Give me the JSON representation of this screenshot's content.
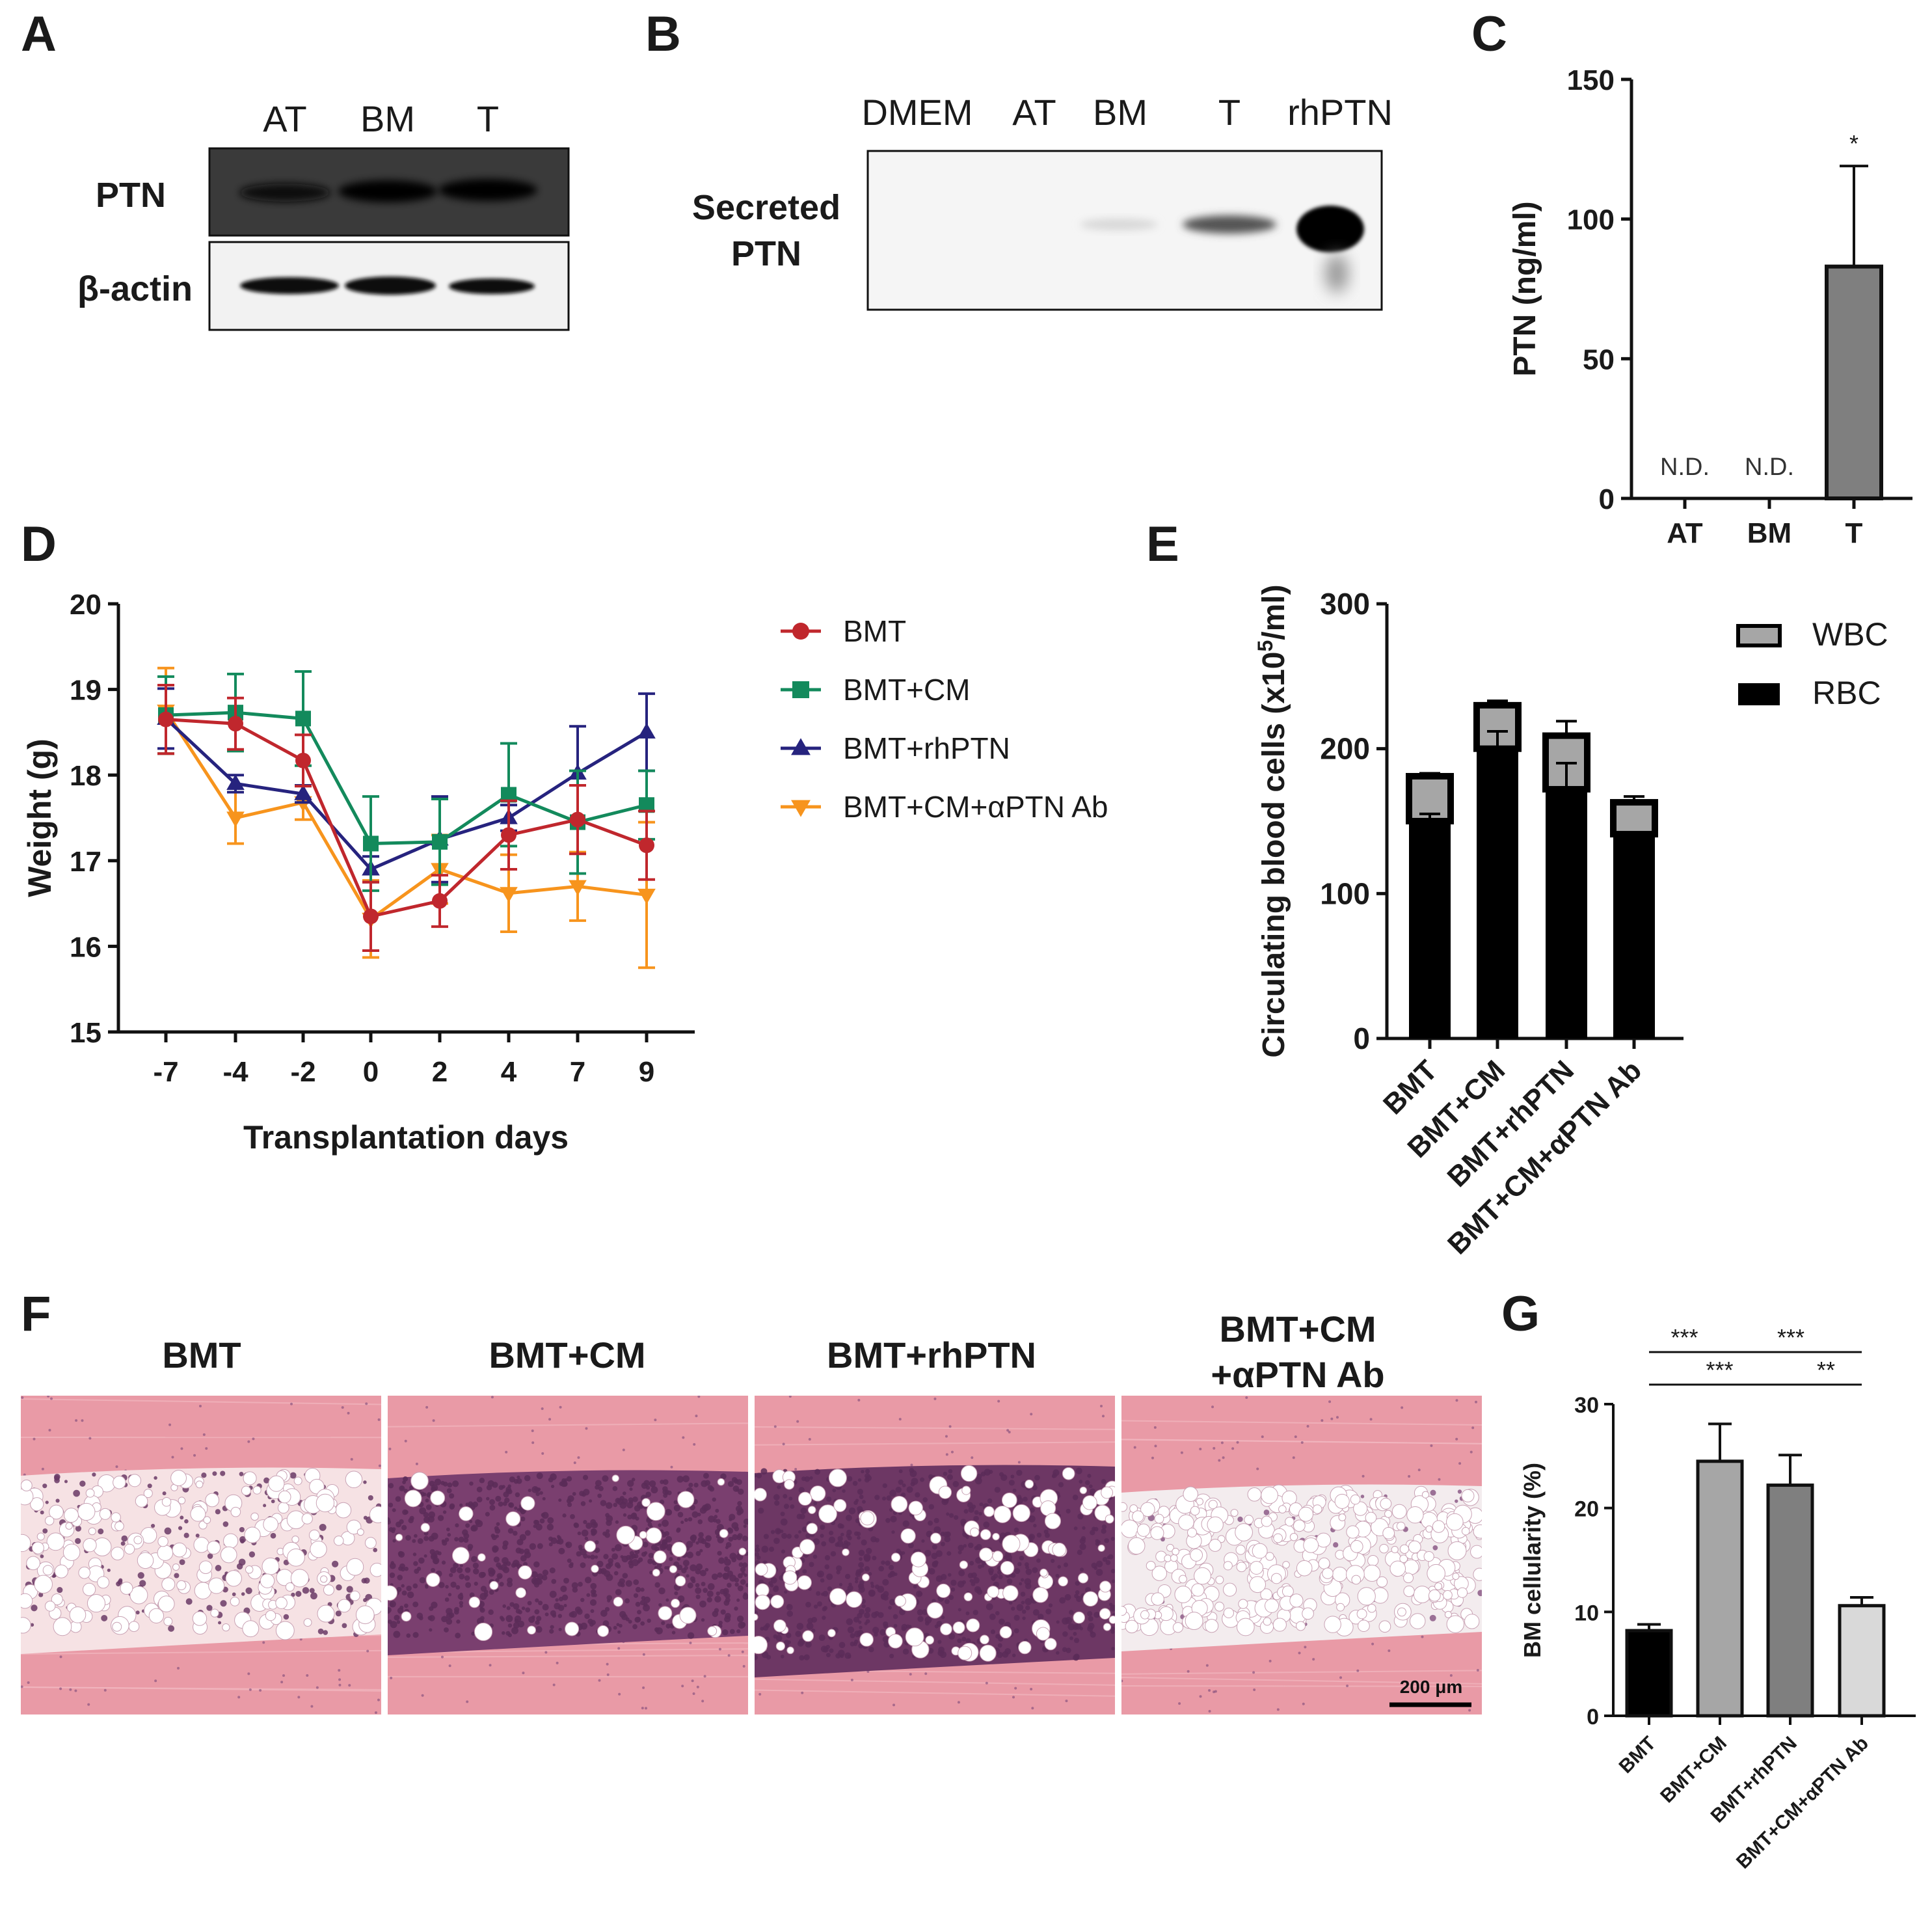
{
  "panel_letters": [
    "A",
    "B",
    "C",
    "D",
    "E",
    "F",
    "G"
  ],
  "blot_a": {
    "lanes": [
      "AT",
      "BM",
      "T"
    ],
    "rows": [
      "PTN",
      "β-actin"
    ]
  },
  "blot_b": {
    "lanes": [
      "DMEM",
      "AT",
      "BM",
      "T",
      "rhPTN"
    ],
    "row_line1": "Secreted",
    "row_line2": "PTN"
  },
  "histology": {
    "titles": [
      "BMT",
      "BMT+CM",
      "BMT+rhPTN"
    ],
    "last_title_line1": "BMT+CM",
    "last_title_line2": "+αPTN Ab",
    "scale_bar": "200 μm",
    "colors": {
      "cortex": "#e99aa6",
      "marrow_empty": "#f6e2e4",
      "marrow_cells": "#5a2b58",
      "fat": "#ffffff"
    }
  },
  "chart_data": [
    {
      "panel": "C",
      "type": "bar",
      "categories": [
        "AT",
        "BM",
        "T"
      ],
      "values": [
        null,
        null,
        83
      ],
      "error_up": [
        null,
        null,
        36
      ],
      "ylabel": "PTN (ng/ml)",
      "ylim": [
        0,
        150
      ],
      "yticks": [
        0,
        50,
        100,
        150
      ],
      "annotations": [
        "N.D.",
        "N.D.",
        "*"
      ],
      "bar_color": "#7f7f7f"
    },
    {
      "panel": "D",
      "type": "line",
      "x": [
        "-7",
        "-4",
        "-2",
        "0",
        "2",
        "4",
        "7",
        "9"
      ],
      "xlabel": "Transplantation days",
      "ylabel": "Weight (g)",
      "ylim": [
        15,
        20
      ],
      "yticks": [
        15,
        16,
        17,
        18,
        19,
        20
      ],
      "legend_position": "right",
      "series": [
        {
          "name": "BMT",
          "color": "#c0272d",
          "marker": "circle",
          "values": [
            18.65,
            18.6,
            18.17,
            16.35,
            16.53,
            17.3,
            17.48,
            17.18
          ],
          "errors": [
            0.4,
            0.3,
            0.3,
            0.4,
            0.3,
            0.4,
            0.4,
            0.4
          ]
        },
        {
          "name": "BMT+CM",
          "color": "#138a5c",
          "marker": "square",
          "values": [
            18.7,
            18.73,
            18.66,
            17.2,
            17.22,
            17.77,
            17.45,
            17.65
          ],
          "errors": [
            0.45,
            0.45,
            0.55,
            0.55,
            0.5,
            0.6,
            0.6,
            0.4
          ]
        },
        {
          "name": "BMT+rhPTN",
          "color": "#26237e",
          "marker": "triangle-up",
          "values": [
            18.66,
            17.9,
            17.78,
            16.9,
            17.25,
            17.5,
            18.02,
            18.5
          ],
          "errors": [
            0.35,
            0.1,
            0.1,
            0.15,
            0.5,
            0.15,
            0.55,
            0.45
          ]
        },
        {
          "name": "BMT+CM+αPTN Ab",
          "color": "#f7941d",
          "marker": "triangle-down",
          "values": [
            18.75,
            17.5,
            17.68,
            16.32,
            16.9,
            16.62,
            16.7,
            16.6
          ],
          "errors": [
            0.5,
            0.3,
            0.2,
            0.45,
            0.4,
            0.45,
            0.4,
            0.85
          ]
        }
      ]
    },
    {
      "panel": "E",
      "type": "bar",
      "stacked": true,
      "categories": [
        "BMT",
        "BMT+CM",
        "BMT+rhPTN",
        "BMT+CM+αPTN Ab"
      ],
      "ylabel": "Circulating blood cells (x10",
      "ylabel_sup": "5",
      "ylabel_end": "/ml)",
      "ylim": [
        0,
        300
      ],
      "yticks": [
        0,
        100,
        200,
        300
      ],
      "legend_position": "top-right",
      "series": [
        {
          "name": "RBC",
          "color": "#000000",
          "values": [
            150,
            200,
            172,
            141
          ],
          "errors": [
            5,
            12,
            18,
            0
          ]
        },
        {
          "name": "WBC",
          "color": "#a6a6a6",
          "values": [
            31,
            30,
            37,
            22
          ],
          "errors": [
            2,
            3,
            10,
            4
          ]
        }
      ]
    },
    {
      "panel": "G",
      "type": "bar",
      "categories": [
        "BMT",
        "BMT+CM",
        "BMT+rhPTN",
        "BMT+CM+αPTN Ab"
      ],
      "values": [
        8.2,
        24.5,
        22.2,
        10.6
      ],
      "error_up": [
        0.6,
        3.6,
        2.9,
        0.8
      ],
      "colors": [
        "#000000",
        "#a6a6a6",
        "#7f7f7f",
        "#d9d9d9"
      ],
      "ylabel": "BM cellularity (%)",
      "ylim": [
        0,
        30
      ],
      "yticks": [
        0,
        10,
        20,
        30
      ],
      "significance": [
        {
          "from": 0,
          "to": 1,
          "label": "***"
        },
        {
          "from": 1,
          "to": 3,
          "label": "***"
        },
        {
          "from": 0,
          "to": 2,
          "label": "***"
        },
        {
          "from": 2,
          "to": 3,
          "label": "**"
        }
      ]
    }
  ]
}
